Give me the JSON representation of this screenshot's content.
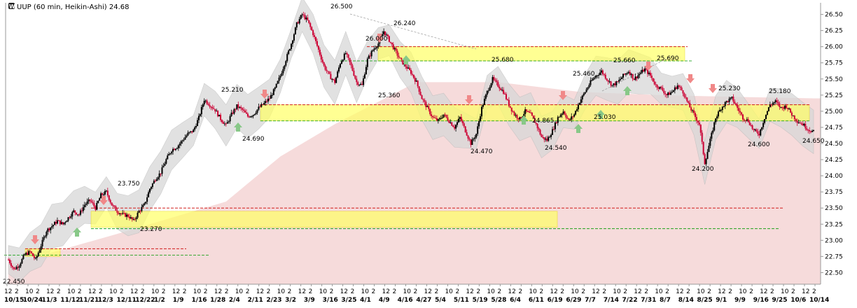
{
  "header": {
    "symbol_icon": "w-logo-icon",
    "title": "UUP (60 min, Heikin-Ashi) 24.68"
  },
  "colors": {
    "up_candle": "#000000",
    "down_candle": "#cc0033",
    "zone_fill": "#ffff66",
    "resistance_line": "#cc0000",
    "support_line": "#009900",
    "band_fill": "#d8d8d8",
    "cloud_fill": "#f2cccc",
    "arrow_up": "#88c888",
    "arrow_down": "#f08888"
  },
  "chart_data": {
    "type": "candlestick",
    "title": "UUP (60 min, Heikin-Ashi) 24.68",
    "last_value": 24.68,
    "ylim": [
      22.32,
      26.68
    ],
    "y_ticks": [
      "22.50",
      "22.75",
      "23.00",
      "23.25",
      "23.50",
      "23.75",
      "24.00",
      "24.25",
      "24.50",
      "24.75",
      "25.00",
      "25.25",
      "25.50",
      "25.75",
      "26.00",
      "26.25",
      "26.50"
    ],
    "x_tick_numbers": [
      "12",
      "2",
      "10",
      "2",
      "12",
      "2",
      "10",
      "2",
      "12",
      "2",
      "10",
      "2",
      "12",
      "2",
      "10",
      "2",
      "12",
      "2",
      "10",
      "2",
      "12",
      "2",
      "10",
      "2",
      "12",
      "2",
      "10",
      "2",
      "12",
      "2",
      "10",
      "2",
      "12",
      "2",
      "10",
      "2",
      "12",
      "2",
      "10",
      "2",
      "12",
      "2",
      "10",
      "2",
      "12",
      "2",
      "10",
      "2",
      "12",
      "2",
      "10",
      "2",
      "12",
      "2",
      "10",
      "2",
      "12",
      "2",
      "10",
      "2",
      "12",
      "2",
      "10",
      "2",
      "12",
      "2",
      "10",
      "2",
      "12",
      "2",
      "10",
      "2",
      "12",
      "2",
      "10",
      "2",
      "12",
      "2"
    ],
    "x_date_labels": [
      "10/15",
      "10/24",
      "11/3",
      "11/12",
      "11/21",
      "12/3",
      "12/11",
      "12/22",
      "1/2",
      "1/9",
      "1/16",
      "1/28",
      "2/4",
      "2/11",
      "2/23",
      "3/2",
      "3/9",
      "3/16",
      "3/25",
      "4/1",
      "4/9",
      "4/16",
      "4/27",
      "5/4",
      "5/11",
      "5/19",
      "5/28",
      "6/4",
      "6/11",
      "6/19",
      "6/29",
      "7/7",
      "7/14",
      "7/22",
      "7/31",
      "8/7",
      "8/14",
      "8/25",
      "9/1",
      "9/9",
      "9/16",
      "9/25",
      "10/6",
      "10/14"
    ],
    "bold_dates": [
      "10/15",
      "10/24",
      "11/3",
      "11/12",
      "11/21",
      "12/3",
      "12/11",
      "12/22",
      "1/2",
      "1/9",
      "1/16",
      "1/28",
      "2/4",
      "2/11",
      "2/23",
      "3/2",
      "3/9",
      "3/16",
      "3/25",
      "4/1",
      "4/9",
      "4/16",
      "4/27",
      "5/4",
      "5/11",
      "5/19",
      "5/28",
      "6/4",
      "6/11",
      "6/19",
      "6/29",
      "7/7",
      "7/14",
      "7/22",
      "7/31",
      "8/7",
      "8/14",
      "8/25",
      "9/1",
      "9/9",
      "9/16",
      "9/25",
      "10/6",
      "10/14"
    ],
    "price_path": [
      [
        0,
        22.7
      ],
      [
        2,
        22.55
      ],
      [
        4,
        22.62
      ],
      [
        6,
        22.78
      ],
      [
        8,
        22.82
      ],
      [
        10,
        22.7
      ],
      [
        12,
        22.92
      ],
      [
        14,
        23.15
      ],
      [
        16,
        23.22
      ],
      [
        18,
        23.3
      ],
      [
        20,
        23.25
      ],
      [
        22,
        23.35
      ],
      [
        24,
        23.45
      ],
      [
        26,
        23.4
      ],
      [
        28,
        23.55
      ],
      [
        30,
        23.62
      ],
      [
        32,
        23.5
      ],
      [
        34,
        23.7
      ],
      [
        36,
        23.75
      ],
      [
        38,
        23.55
      ],
      [
        40,
        23.45
      ],
      [
        42,
        23.4
      ],
      [
        44,
        23.38
      ],
      [
        46,
        23.3
      ],
      [
        48,
        23.45
      ],
      [
        50,
        23.55
      ],
      [
        52,
        23.8
      ],
      [
        54,
        23.95
      ],
      [
        56,
        24.05
      ],
      [
        58,
        24.25
      ],
      [
        60,
        24.4
      ],
      [
        62,
        24.45
      ],
      [
        64,
        24.55
      ],
      [
        66,
        24.65
      ],
      [
        68,
        24.7
      ],
      [
        70,
        24.9
      ],
      [
        72,
        25.18
      ],
      [
        74,
        25.1
      ],
      [
        76,
        25.02
      ],
      [
        78,
        24.88
      ],
      [
        80,
        24.78
      ],
      [
        82,
        24.95
      ],
      [
        84,
        25.08
      ],
      [
        86,
        25.02
      ],
      [
        88,
        24.92
      ],
      [
        90,
        24.95
      ],
      [
        92,
        25.05
      ],
      [
        94,
        25.12
      ],
      [
        96,
        25.2
      ],
      [
        98,
        25.35
      ],
      [
        100,
        25.55
      ],
      [
        102,
        25.8
      ],
      [
        104,
        26.05
      ],
      [
        106,
        26.35
      ],
      [
        108,
        26.5
      ],
      [
        110,
        26.4
      ],
      [
        112,
        26.2
      ],
      [
        114,
        25.95
      ],
      [
        116,
        25.7
      ],
      [
        118,
        25.55
      ],
      [
        120,
        25.45
      ],
      [
        122,
        25.75
      ],
      [
        124,
        25.9
      ],
      [
        126,
        25.7
      ],
      [
        128,
        25.45
      ],
      [
        130,
        25.4
      ],
      [
        132,
        25.8
      ],
      [
        134,
        25.95
      ],
      [
        136,
        26.05
      ],
      [
        138,
        26.24
      ],
      [
        140,
        26.1
      ],
      [
        142,
        25.95
      ],
      [
        144,
        25.8
      ],
      [
        146,
        25.7
      ],
      [
        148,
        25.6
      ],
      [
        150,
        25.45
      ],
      [
        152,
        25.2
      ],
      [
        154,
        25.05
      ],
      [
        156,
        24.9
      ],
      [
        158,
        24.85
      ],
      [
        160,
        24.95
      ],
      [
        162,
        24.85
      ],
      [
        164,
        24.75
      ],
      [
        166,
        24.9
      ],
      [
        168,
        24.7
      ],
      [
        170,
        24.5
      ],
      [
        172,
        24.65
      ],
      [
        174,
        25.05
      ],
      [
        176,
        25.3
      ],
      [
        178,
        25.5
      ],
      [
        180,
        25.4
      ],
      [
        182,
        25.3
      ],
      [
        184,
        25.1
      ],
      [
        186,
        24.95
      ],
      [
        188,
        24.88
      ],
      [
        190,
        25.0
      ],
      [
        192,
        24.95
      ],
      [
        194,
        24.8
      ],
      [
        196,
        24.6
      ],
      [
        198,
        24.55
      ],
      [
        200,
        24.7
      ],
      [
        202,
        24.9
      ],
      [
        204,
        25.0
      ],
      [
        206,
        24.85
      ],
      [
        208,
        24.95
      ],
      [
        210,
        25.15
      ],
      [
        212,
        25.3
      ],
      [
        214,
        25.45
      ],
      [
        216,
        25.55
      ],
      [
        218,
        25.62
      ],
      [
        220,
        25.5
      ],
      [
        222,
        25.4
      ],
      [
        224,
        25.45
      ],
      [
        226,
        25.55
      ],
      [
        228,
        25.62
      ],
      [
        230,
        25.5
      ],
      [
        232,
        25.58
      ],
      [
        234,
        25.65
      ],
      [
        236,
        25.55
      ],
      [
        238,
        25.4
      ],
      [
        240,
        25.35
      ],
      [
        242,
        25.25
      ],
      [
        244,
        25.3
      ],
      [
        246,
        25.4
      ],
      [
        248,
        25.3
      ],
      [
        250,
        25.1
      ],
      [
        252,
        24.95
      ],
      [
        254,
        24.8
      ],
      [
        256,
        24.2
      ],
      [
        258,
        24.55
      ],
      [
        260,
        24.9
      ],
      [
        262,
        25.05
      ],
      [
        264,
        25.15
      ],
      [
        266,
        25.2
      ],
      [
        268,
        25.05
      ],
      [
        270,
        24.9
      ],
      [
        272,
        24.85
      ],
      [
        274,
        24.7
      ],
      [
        276,
        24.65
      ],
      [
        278,
        24.9
      ],
      [
        280,
        25.1
      ],
      [
        282,
        25.15
      ],
      [
        284,
        25.05
      ],
      [
        286,
        25.08
      ],
      [
        288,
        24.95
      ],
      [
        290,
        24.85
      ],
      [
        292,
        24.8
      ],
      [
        294,
        24.72
      ],
      [
        296,
        24.68
      ]
    ],
    "annotations": [
      "22.450",
      "23.750",
      "23.270",
      "25.210",
      "24.690",
      "26.500",
      "26.240",
      "26.000",
      "25.360",
      "25.680",
      "24.470",
      "24.865",
      "25.030",
      "24.540",
      "25.460",
      "25.660",
      "25.690",
      "25.230",
      "25.180",
      "24.200",
      "24.600",
      "24.650"
    ],
    "zones": [
      {
        "from": 22.75,
        "to": 22.87
      },
      {
        "from": 23.2,
        "to": 23.45
      },
      {
        "from": 24.85,
        "to": 25.1
      },
      {
        "from": 25.78,
        "to": 26.0
      }
    ],
    "resistance_levels": [
      22.87,
      23.5,
      25.1,
      26.0
    ],
    "support_levels": [
      22.77,
      23.18,
      24.85,
      25.78
    ],
    "grid": false,
    "y_axis_side": "right"
  }
}
